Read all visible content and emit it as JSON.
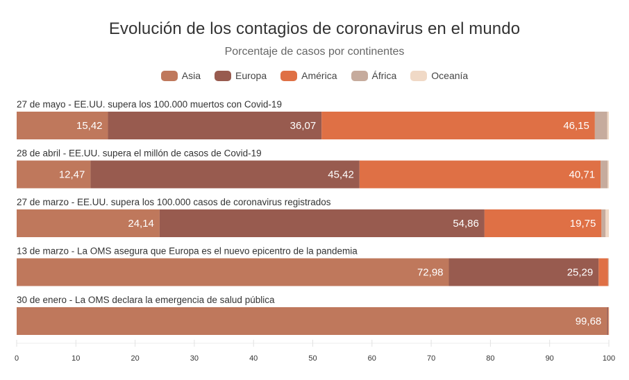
{
  "chart_data": {
    "type": "bar",
    "orientation": "horizontal",
    "stacked": true,
    "title": "Evolución de los contagios de coronavirus en el mundo",
    "subtitle": "Porcentaje de casos por continentes",
    "xlabel": "",
    "ylabel": "",
    "xlim": [
      0,
      100
    ],
    "xticks": [
      "0",
      "10",
      "20",
      "30",
      "40",
      "50",
      "60",
      "70",
      "80",
      "90",
      "100"
    ],
    "grid": false,
    "legend_position": "top-center",
    "categories": [
      "27 de mayo - EE.UU. supera los 100.000 muertos con Covid-19",
      "28 de abril - EE.UU. supera el millón de casos de Covid-19",
      "27 de marzo - EE.UU. supera los 100.000 casos de coronavirus registrados",
      "13 de marzo - La OMS asegura que Europa es el nuevo epicentro de la pandemia",
      "30 de enero - La OMS declara la emergencia de salud pública"
    ],
    "series": [
      {
        "name": "Asia",
        "color": "#bf785c",
        "values": [
          15.42,
          12.47,
          24.14,
          72.98,
          99.68
        ],
        "labels": [
          "15,42",
          "12,47",
          "24,14",
          "72,98",
          "99,68"
        ]
      },
      {
        "name": "Europa",
        "color": "#985b4f",
        "values": [
          36.07,
          45.42,
          54.86,
          25.29,
          0.2
        ],
        "labels": [
          "36,07",
          "45,42",
          "54,86",
          "25,29",
          ""
        ]
      },
      {
        "name": "América",
        "color": "#df7045",
        "values": [
          46.15,
          40.71,
          19.75,
          1.6,
          0.08
        ],
        "labels": [
          "46,15",
          "40,71",
          "19,75",
          "",
          ""
        ]
      },
      {
        "name": "África",
        "color": "#c6ab9d",
        "values": [
          2.1,
          1.2,
          0.7,
          0.1,
          0.02
        ],
        "labels": [
          "",
          "",
          "",
          "",
          ""
        ]
      },
      {
        "name": "Oceanía",
        "color": "#f0d9c6",
        "values": [
          0.26,
          0.2,
          0.55,
          0.03,
          0.02
        ],
        "labels": [
          "",
          "",
          "",
          "",
          ""
        ]
      }
    ]
  }
}
